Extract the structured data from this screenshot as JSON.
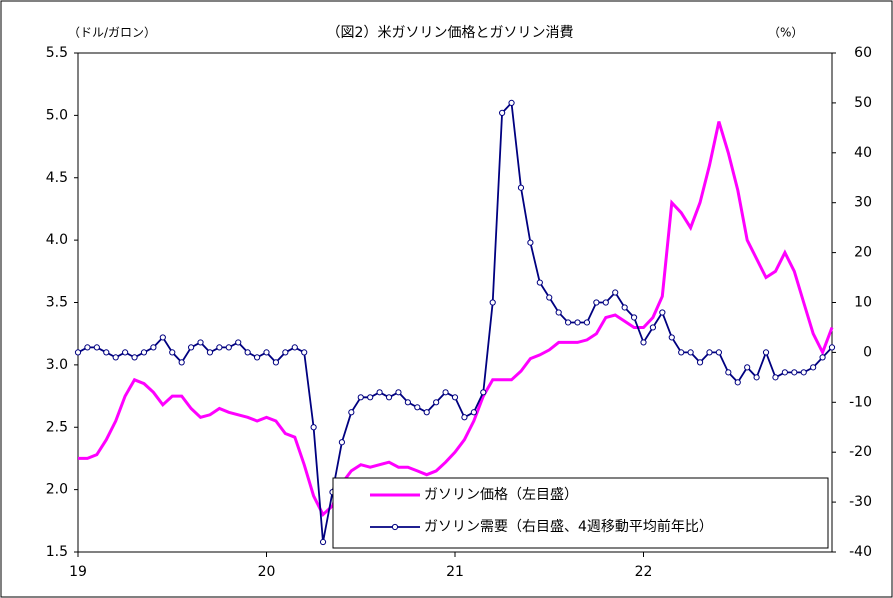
{
  "chart_data": {
    "type": "line",
    "title": "（図2）米ガソリン価格とガソリン消費",
    "y_label": "（ドル/ガロン）",
    "y2_label": "（%）",
    "x": [
      2019.0,
      2019.05,
      2019.1,
      2019.15,
      2019.2,
      2019.25,
      2019.3,
      2019.35,
      2019.4,
      2019.45,
      2019.5,
      2019.55,
      2019.6,
      2019.65,
      2019.7,
      2019.75,
      2019.8,
      2019.85,
      2019.9,
      2019.95,
      2020.0,
      2020.05,
      2020.1,
      2020.15,
      2020.2,
      2020.25,
      2020.3,
      2020.35,
      2020.4,
      2020.45,
      2020.5,
      2020.55,
      2020.6,
      2020.65,
      2020.7,
      2020.75,
      2020.8,
      2020.85,
      2020.9,
      2020.95,
      2021.0,
      2021.05,
      2021.1,
      2021.15,
      2021.2,
      2021.25,
      2021.3,
      2021.35,
      2021.4,
      2021.45,
      2021.5,
      2021.55,
      2021.6,
      2021.65,
      2021.7,
      2021.75,
      2021.8,
      2021.85,
      2021.9,
      2021.95,
      2022.0,
      2022.05,
      2022.1,
      2022.15,
      2022.2,
      2022.25,
      2022.3,
      2022.35,
      2022.4,
      2022.45,
      2022.5,
      2022.55,
      2022.6,
      2022.65,
      2022.7,
      2022.75,
      2022.8,
      2022.85,
      2022.9,
      2022.95,
      2023.0
    ],
    "series": [
      {
        "name": "ガソリン価格（左目盛）",
        "color": "#ff00ff",
        "values": [
          2.25,
          2.25,
          2.28,
          2.4,
          2.55,
          2.75,
          2.88,
          2.85,
          2.78,
          2.68,
          2.75,
          2.75,
          2.65,
          2.58,
          2.6,
          2.65,
          2.62,
          2.6,
          2.58,
          2.55,
          2.58,
          2.55,
          2.45,
          2.42,
          2.2,
          1.95,
          1.8,
          1.87,
          2.05,
          2.15,
          2.2,
          2.18,
          2.2,
          2.22,
          2.18,
          2.18,
          2.15,
          2.12,
          2.15,
          2.22,
          2.3,
          2.4,
          2.55,
          2.75,
          2.88,
          2.88,
          2.88,
          2.95,
          3.05,
          3.08,
          3.12,
          3.18,
          3.18,
          3.18,
          3.2,
          3.25,
          3.38,
          3.4,
          3.35,
          3.3,
          3.3,
          3.38,
          3.55,
          4.3,
          4.22,
          4.1,
          4.3,
          4.6,
          4.95,
          4.7,
          4.4,
          4.0,
          3.85,
          3.7,
          3.75,
          3.9,
          3.75,
          3.5,
          3.25,
          3.1,
          3.3
        ]
      },
      {
        "name": "ガソリン需要（右目盛、4週移動平均前年比）",
        "color": "#000080",
        "axis": "y2",
        "values": [
          0,
          1,
          1,
          0,
          -1,
          0,
          -1,
          0,
          1,
          3,
          0,
          -2,
          1,
          2,
          0,
          1,
          1,
          2,
          0,
          -1,
          0,
          -2,
          0,
          1,
          0,
          -15,
          -38,
          -28,
          -18,
          -12,
          -9,
          -9,
          -8,
          -9,
          -8,
          -10,
          -11,
          -12,
          -10,
          -8,
          -9,
          -13,
          -12,
          -8,
          10,
          48,
          50,
          33,
          22,
          14,
          11,
          8,
          6,
          6,
          6,
          10,
          10,
          12,
          9,
          7,
          2,
          5,
          8,
          3,
          0,
          0,
          -2,
          0,
          0,
          -4,
          -6,
          -3,
          -5,
          0,
          -5,
          -4,
          -4,
          -4,
          -3,
          -1,
          1
        ]
      }
    ],
    "xlim": [
      2019,
      2023
    ],
    "xticks": [
      {
        "value": 2019,
        "label": "19"
      },
      {
        "value": 2020,
        "label": "20"
      },
      {
        "value": 2021,
        "label": "21"
      },
      {
        "value": 2022,
        "label": "22"
      }
    ],
    "ylim": [
      1.5,
      5.5
    ],
    "yticks": [
      1.5,
      {
        "value": 2,
        "label": "2.0"
      },
      2.5,
      {
        "value": 3,
        "label": "3.0"
      },
      3.5,
      {
        "value": 4,
        "label": "4.0"
      },
      4.5,
      {
        "value": 5,
        "label": "5.0"
      },
      5.5
    ],
    "y2lim": [
      -40,
      60
    ],
    "y2ticks": [
      -40,
      -30,
      -20,
      -10,
      0,
      10,
      20,
      30,
      40,
      50,
      60
    ],
    "grid": false
  }
}
